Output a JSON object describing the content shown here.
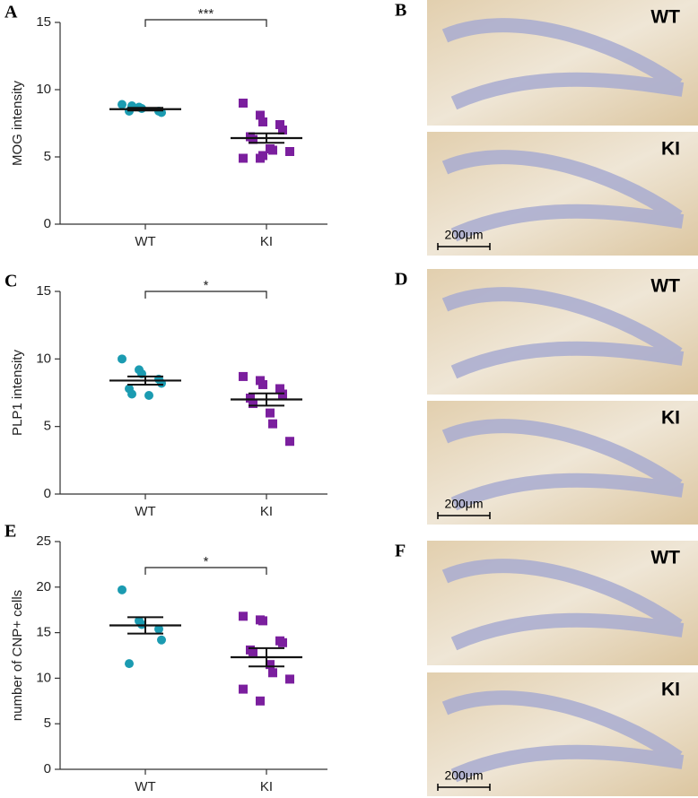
{
  "chart_data": [
    {
      "type": "dot",
      "panel": "A",
      "y_label": "MOG intensity",
      "significance": "***",
      "ylim": [
        0,
        15
      ],
      "yticks": [
        0,
        5,
        10,
        15
      ],
      "series": [
        {
          "name": "WT",
          "color": "#1b9bb1",
          "values": [
            8.9,
            8.7,
            8.6,
            8.4,
            8.3,
            8.4,
            8.8
          ],
          "mean": 8.55,
          "sem": 0.1
        },
        {
          "name": "KI",
          "color": "#7b1f9e",
          "values": [
            9.0,
            8.1,
            7.6,
            7.4,
            7.0,
            6.5,
            6.3,
            5.6,
            5.5,
            5.4,
            4.9,
            4.9,
            5.1
          ],
          "mean": 6.4,
          "sem": 0.35
        }
      ]
    },
    {
      "type": "dot",
      "panel": "C",
      "y_label": "PLP1 intensity",
      "significance": "*",
      "ylim": [
        0,
        15
      ],
      "yticks": [
        0,
        5,
        10,
        15
      ],
      "series": [
        {
          "name": "WT",
          "color": "#1b9bb1",
          "values": [
            10.0,
            9.2,
            8.9,
            8.5,
            8.2,
            7.8,
            7.4,
            7.3
          ],
          "mean": 8.4,
          "sem": 0.3
        },
        {
          "name": "KI",
          "color": "#7b1f9e",
          "values": [
            8.7,
            8.4,
            8.1,
            7.8,
            7.4,
            7.1,
            6.7,
            6.0,
            5.2,
            3.9
          ],
          "mean": 7.0,
          "sem": 0.45
        }
      ]
    },
    {
      "type": "dot",
      "panel": "E",
      "y_label": "number of CNP+ cells",
      "significance": "*",
      "ylim": [
        0,
        25
      ],
      "yticks": [
        0,
        5,
        10,
        15,
        20,
        25
      ],
      "series": [
        {
          "name": "WT",
          "color": "#1b9bb1",
          "values": [
            19.7,
            16.3,
            15.9,
            15.4,
            14.2,
            11.6
          ],
          "mean": 15.8,
          "sem": 0.9
        },
        {
          "name": "KI",
          "color": "#7b1f9e",
          "values": [
            16.8,
            16.4,
            16.3,
            14.1,
            13.9,
            13.1,
            12.9,
            11.5,
            10.6,
            9.9,
            8.8,
            7.5
          ],
          "mean": 12.3,
          "sem": 1.0
        }
      ]
    }
  ],
  "micrographs": [
    {
      "panel": "B",
      "top_label": "WT",
      "bottom_label": "KI",
      "scale_bar": "200μm"
    },
    {
      "panel": "D",
      "top_label": "WT",
      "bottom_label": "KI",
      "scale_bar": "200μm"
    },
    {
      "panel": "F",
      "top_label": "WT",
      "bottom_label": "KI",
      "scale_bar": "200μm"
    }
  ]
}
